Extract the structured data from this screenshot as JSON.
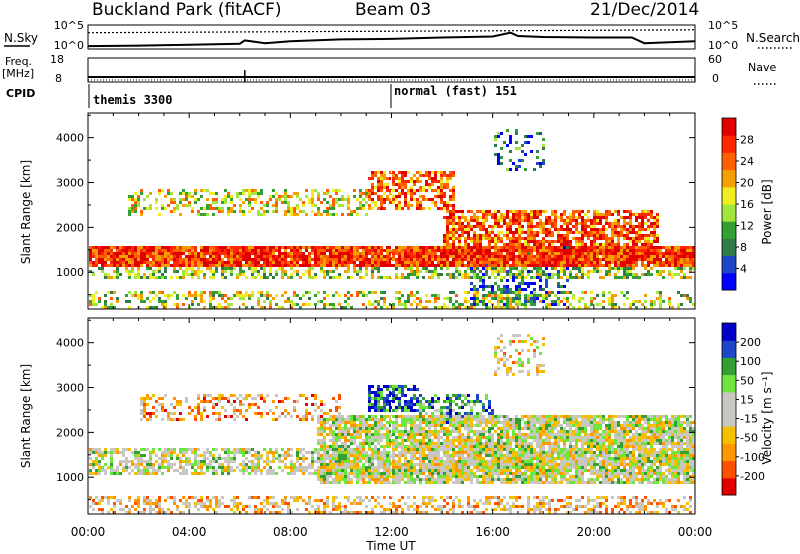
{
  "header": {
    "station": "Buckland Park (fitACF)",
    "beam": "Beam 03",
    "date": "21/Dec/2014"
  },
  "left_labels": {
    "nsky": "N.Sky",
    "freq": "Freq.",
    "freq_unit": "[MHz]",
    "cpid": "CPID"
  },
  "right_labels": {
    "nsearch": "N.Search",
    "nave": "Nave"
  },
  "colors": {
    "frame": "#000000",
    "white_line": "#ffffff"
  },
  "chart_data": [
    {
      "type": "line",
      "panel": "noise",
      "ylabel_left": "N.Sky",
      "ylabel_right": "N.Search",
      "ticks_left": [
        "10^5",
        "10^0"
      ],
      "ticks_right": [
        "10^5",
        "10^0"
      ],
      "series": [
        {
          "name": "N.Sky",
          "x": [
            0,
            2,
            4,
            6,
            6.2,
            7,
            8,
            10,
            12,
            14,
            16,
            16.7,
            17,
            18,
            20,
            21.5,
            22,
            24
          ],
          "y": [
            0.6,
            0.7,
            0.9,
            1.1,
            1.8,
            1.2,
            1.6,
            2.0,
            2.1,
            2.4,
            2.6,
            3.4,
            2.7,
            2.5,
            2.4,
            2.4,
            1.2,
            1.6
          ]
        },
        {
          "name": "N.Search",
          "x": [
            0,
            4,
            8,
            12,
            16,
            20,
            24
          ],
          "y": [
            3.4,
            3.5,
            3.6,
            3.7,
            3.8,
            3.9,
            4.0
          ]
        }
      ]
    },
    {
      "type": "line",
      "panel": "frequency",
      "ylabel_left": "Freq. [MHz]",
      "ylabel_right": "Nave",
      "ticks_left": [
        "18",
        "8"
      ],
      "ticks_right": [
        "60",
        "0"
      ],
      "series": [
        {
          "name": "Freq.",
          "x": [
            0,
            24
          ],
          "y": [
            8,
            8
          ]
        },
        {
          "name": "Nave",
          "x": [
            0,
            24
          ],
          "y": [
            0,
            0
          ]
        }
      ]
    },
    {
      "type": "table",
      "panel": "cpid",
      "label": "CPID",
      "segments": [
        {
          "label": "themis 3300",
          "start": 0,
          "end": 12
        },
        {
          "label": "normal (fast) 151",
          "start": 12,
          "end": 24
        }
      ]
    },
    {
      "type": "heatmap",
      "panel": "power",
      "ylabel": "Slant Range [km]",
      "yticks": [
        1000,
        2000,
        3000,
        4000
      ],
      "ylim": [
        180,
        4550
      ],
      "xlim": [
        0,
        24
      ],
      "colorbar_label": "Power [dB]",
      "colorbar_ticks": [
        "28",
        "24",
        "20",
        "16",
        "12",
        "8",
        "4"
      ],
      "colorbar_colors": [
        "#0000ff",
        "#1e46c8",
        "#327a4a",
        "#32a032",
        "#a0e63c",
        "#f0ee1e",
        "#f5a000",
        "#ff6000",
        "#ff2800",
        "#e00000"
      ],
      "bands": [
        {
          "x0": 0,
          "x1": 24,
          "y0": 1150,
          "y1": 1600,
          "level": 0.85,
          "density": 0.95
        },
        {
          "x0": 0,
          "x1": 24,
          "y0": 900,
          "y1": 1150,
          "level": 0.45,
          "density": 0.5
        },
        {
          "x0": 1.5,
          "x1": 11,
          "y0": 2300,
          "y1": 2900,
          "level": 0.55,
          "density": 0.4
        },
        {
          "x0": 11,
          "x1": 14.5,
          "y0": 2400,
          "y1": 3300,
          "level": 0.75,
          "density": 0.6
        },
        {
          "x0": 14,
          "x1": 22.5,
          "y0": 1600,
          "y1": 2400,
          "level": 0.8,
          "density": 0.75
        },
        {
          "x0": 0,
          "x1": 24,
          "y0": 180,
          "y1": 600,
          "level": 0.5,
          "density": 0.4
        },
        {
          "x0": 15,
          "x1": 19,
          "y0": 300,
          "y1": 1600,
          "level": 0.15,
          "density": 0.35
        },
        {
          "x0": 16,
          "x1": 18,
          "y0": 3300,
          "y1": 4200,
          "level": 0.2,
          "density": 0.25
        }
      ]
    },
    {
      "type": "heatmap",
      "panel": "velocity",
      "ylabel": "Slant Range [km]",
      "yticks": [
        1000,
        2000,
        3000,
        4000
      ],
      "ylim": [
        180,
        4550
      ],
      "xlim": [
        0,
        24
      ],
      "xticks": [
        "00:00",
        "04:00",
        "08:00",
        "12:00",
        "16:00",
        "20:00",
        "00:00"
      ],
      "xlabel": "Time UT",
      "colorbar_label": "Velocity [m s⁻¹]",
      "colorbar_ticks": [
        "200",
        "100",
        "50",
        "15",
        "-15",
        "-50",
        "-100",
        "-200"
      ],
      "colorbar_colors": [
        "#e00000",
        "#ff5000",
        "#ff9600",
        "#f5c000",
        "#c8c8c0",
        "#c8c8c0",
        "#6ee63c",
        "#32a032",
        "#1e46c8",
        "#0000c8"
      ],
      "bands": [
        {
          "x0": 0,
          "x1": 24,
          "y0": 1100,
          "y1": 1700,
          "level": 0.5,
          "density": 0.6
        },
        {
          "x0": 9,
          "x1": 24,
          "y0": 900,
          "y1": 2400,
          "level": 0.5,
          "density": 0.85
        },
        {
          "x0": 11,
          "x1": 13,
          "y0": 2500,
          "y1": 3100,
          "level": 0.9,
          "density": 0.6
        },
        {
          "x0": 13,
          "x1": 16,
          "y0": 2200,
          "y1": 2900,
          "level": 0.75,
          "density": 0.5
        },
        {
          "x0": 0,
          "x1": 24,
          "y0": 180,
          "y1": 600,
          "level": 0.35,
          "density": 0.45
        },
        {
          "x0": 2,
          "x1": 10,
          "y0": 2300,
          "y1": 2900,
          "level": 0.3,
          "density": 0.35
        },
        {
          "x0": 16,
          "x1": 18,
          "y0": 3300,
          "y1": 4200,
          "level": 0.4,
          "density": 0.25
        }
      ]
    }
  ]
}
